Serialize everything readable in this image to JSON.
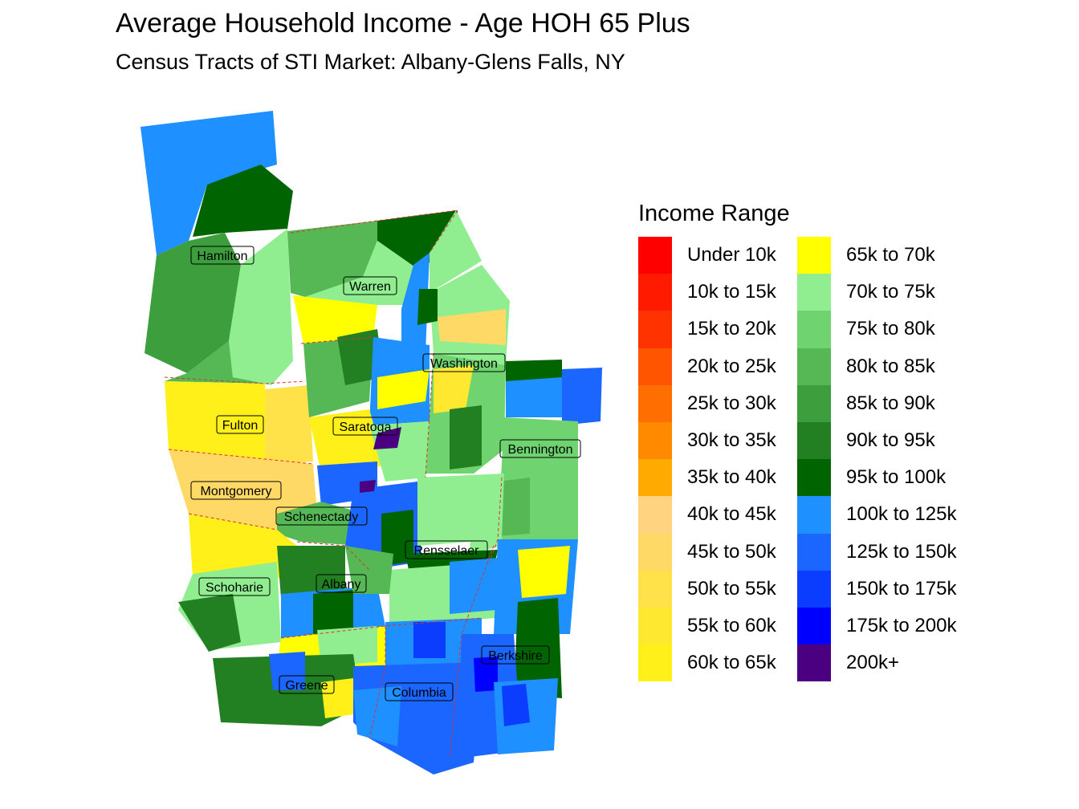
{
  "title": "Average Household Income - Age HOH 65 Plus",
  "subtitle": "Census Tracts of STI Market: Albany-Glens Falls, NY",
  "legend": {
    "title": "Income Range",
    "items": [
      {
        "label": "Under 10k",
        "color": "#ff0000"
      },
      {
        "label": "10k to 15k",
        "color": "#ff1a00"
      },
      {
        "label": "15k to 20k",
        "color": "#ff3300"
      },
      {
        "label": "20k to 25k",
        "color": "#ff5500"
      },
      {
        "label": "25k to 30k",
        "color": "#ff6e00"
      },
      {
        "label": "30k to 35k",
        "color": "#ff8a00"
      },
      {
        "label": "35k to 40k",
        "color": "#ffaa00"
      },
      {
        "label": "40k to 45k",
        "color": "#ffd37f"
      },
      {
        "label": "45k to 50k",
        "color": "#ffd966"
      },
      {
        "label": "50k to 55k",
        "color": "#ffe14a"
      },
      {
        "label": "55k to 60k",
        "color": "#ffe830"
      },
      {
        "label": "60k to 65k",
        "color": "#fff01a"
      },
      {
        "label": "65k to 70k",
        "color": "#ffff00"
      },
      {
        "label": "70k to 75k",
        "color": "#90ee90"
      },
      {
        "label": "75k to 80k",
        "color": "#6fd46f"
      },
      {
        "label": "80k to 85k",
        "color": "#55b855"
      },
      {
        "label": "85k to 90k",
        "color": "#3d9e3d"
      },
      {
        "label": "90k to 95k",
        "color": "#228022"
      },
      {
        "label": "95k to 100k",
        "color": "#006400"
      },
      {
        "label": "100k to 125k",
        "color": "#1e90ff"
      },
      {
        "label": "125k to 150k",
        "color": "#1a66ff"
      },
      {
        "label": "150k to 175k",
        "color": "#0a3dff"
      },
      {
        "label": "175k to 200k",
        "color": "#0000ff"
      },
      {
        "label": "200k+",
        "color": "#4b0082"
      }
    ]
  },
  "counties": [
    {
      "name": "Hamilton"
    },
    {
      "name": "Warren"
    },
    {
      "name": "Washington"
    },
    {
      "name": "Fulton"
    },
    {
      "name": "Saratoga"
    },
    {
      "name": "Bennington"
    },
    {
      "name": "Montgomery"
    },
    {
      "name": "Schenectady"
    },
    {
      "name": "Rensselaer"
    },
    {
      "name": "Schoharie"
    },
    {
      "name": "Albany"
    },
    {
      "name": "Berkshire"
    },
    {
      "name": "Greene"
    },
    {
      "name": "Columbia"
    }
  ]
}
